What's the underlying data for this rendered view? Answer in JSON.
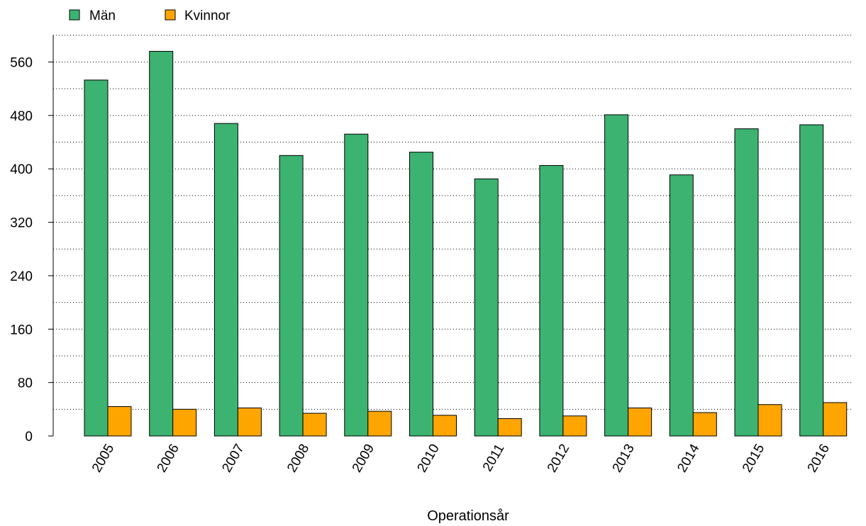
{
  "chart_data": {
    "type": "bar",
    "title": "",
    "xlabel": "Operationsår",
    "ylabel": "",
    "categories": [
      "2005",
      "2006",
      "2007",
      "2008",
      "2009",
      "2010",
      "2011",
      "2012",
      "2013",
      "2014",
      "2015",
      "2016"
    ],
    "series": [
      {
        "name": "Män",
        "color": "#3cb371",
        "values": [
          533,
          576,
          468,
          420,
          452,
          425,
          385,
          405,
          481,
          391,
          460,
          466
        ]
      },
      {
        "name": "Kvinnor",
        "color": "#ffa500",
        "values": [
          44,
          40,
          42,
          34,
          37,
          31,
          26,
          30,
          42,
          35,
          47,
          50
        ]
      }
    ],
    "ylim": [
      0,
      600
    ],
    "yticks": [
      0,
      80,
      160,
      240,
      320,
      400,
      480,
      560
    ],
    "grid": true,
    "legend_position": "top-left"
  }
}
